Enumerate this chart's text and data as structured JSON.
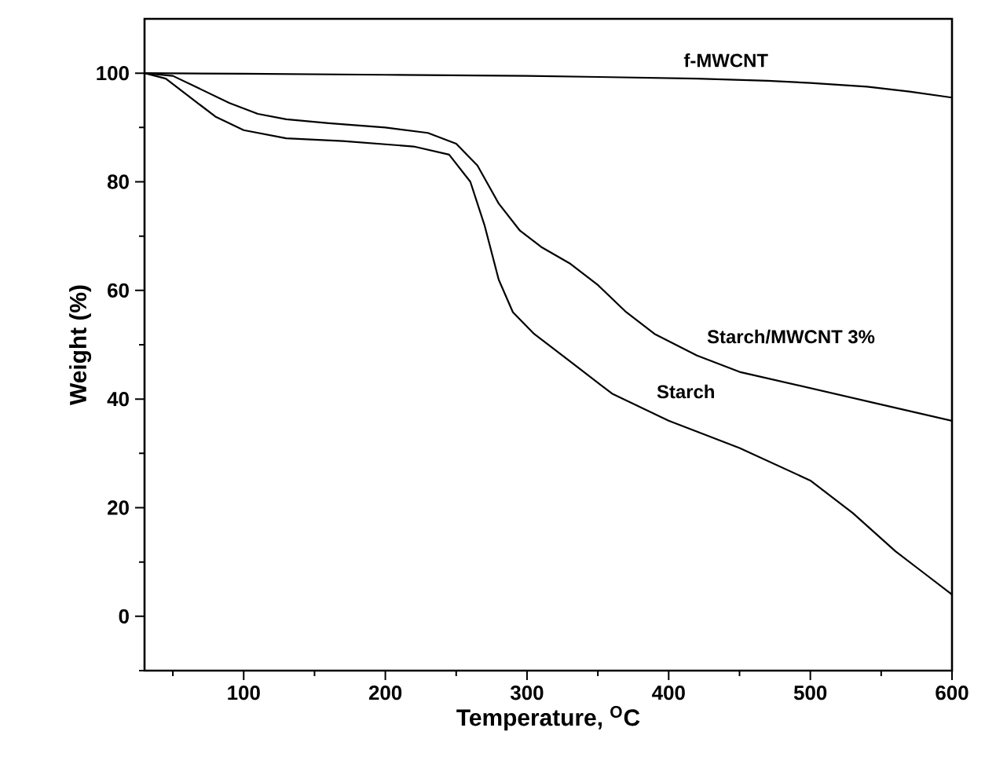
{
  "chart_data": {
    "type": "line",
    "xlabel": "Temperature, $^{O}$C",
    "ylabel": "Weight (%)",
    "xlim": [
      30,
      600
    ],
    "ylim": [
      -10,
      110
    ],
    "xticks": [
      {
        "value": 50,
        "label": null
      },
      100,
      {
        "value": 150,
        "label": null
      },
      200,
      {
        "value": 250,
        "label": null
      },
      300,
      {
        "value": 350,
        "label": null
      },
      400,
      {
        "value": 450,
        "label": null
      },
      500,
      {
        "value": 550,
        "label": null
      },
      600
    ],
    "yticks": [
      {
        "value": -10,
        "label": null
      },
      0,
      {
        "value": 10,
        "label": null
      },
      20,
      {
        "value": 30,
        "label": null
      },
      40,
      {
        "value": 50,
        "label": null
      },
      60,
      {
        "value": 70,
        "label": null
      },
      80,
      {
        "value": 90,
        "label": null
      },
      100
    ],
    "grid": false,
    "legend": false,
    "marker": "none",
    "line_style": "solid",
    "series": [
      {
        "name": "f-MWCNT",
        "color": "#000000",
        "x": [
          30,
          100,
          200,
          300,
          350,
          420,
          470,
          500,
          540,
          570,
          600
        ],
        "values": [
          100,
          99.9,
          99.7,
          99.5,
          99.3,
          99,
          98.6,
          98.2,
          97.5,
          96.6,
          95.5
        ]
      },
      {
        "name": "Starch/MWCNT 3%",
        "color": "#000000",
        "x": [
          30,
          50,
          70,
          90,
          110,
          130,
          160,
          200,
          230,
          250,
          265,
          280,
          295,
          310,
          330,
          350,
          370,
          390,
          420,
          450,
          500,
          550,
          600
        ],
        "values": [
          100,
          99.5,
          97,
          94.5,
          92.5,
          91.5,
          90.8,
          90,
          89,
          87,
          83,
          76,
          71,
          68,
          65,
          61,
          56,
          52,
          48,
          45,
          42,
          39,
          36
        ]
      },
      {
        "name": "Starch",
        "color": "#000000",
        "x": [
          30,
          45,
          60,
          80,
          100,
          130,
          170,
          220,
          245,
          260,
          270,
          280,
          290,
          305,
          330,
          360,
          400,
          450,
          500,
          530,
          560,
          580,
          600
        ],
        "values": [
          100,
          99,
          96,
          92,
          89.5,
          88,
          87.5,
          86.5,
          85,
          80,
          72,
          62,
          56,
          52,
          47,
          41,
          36,
          31,
          25,
          19,
          12,
          8,
          4
        ]
      }
    ]
  }
}
